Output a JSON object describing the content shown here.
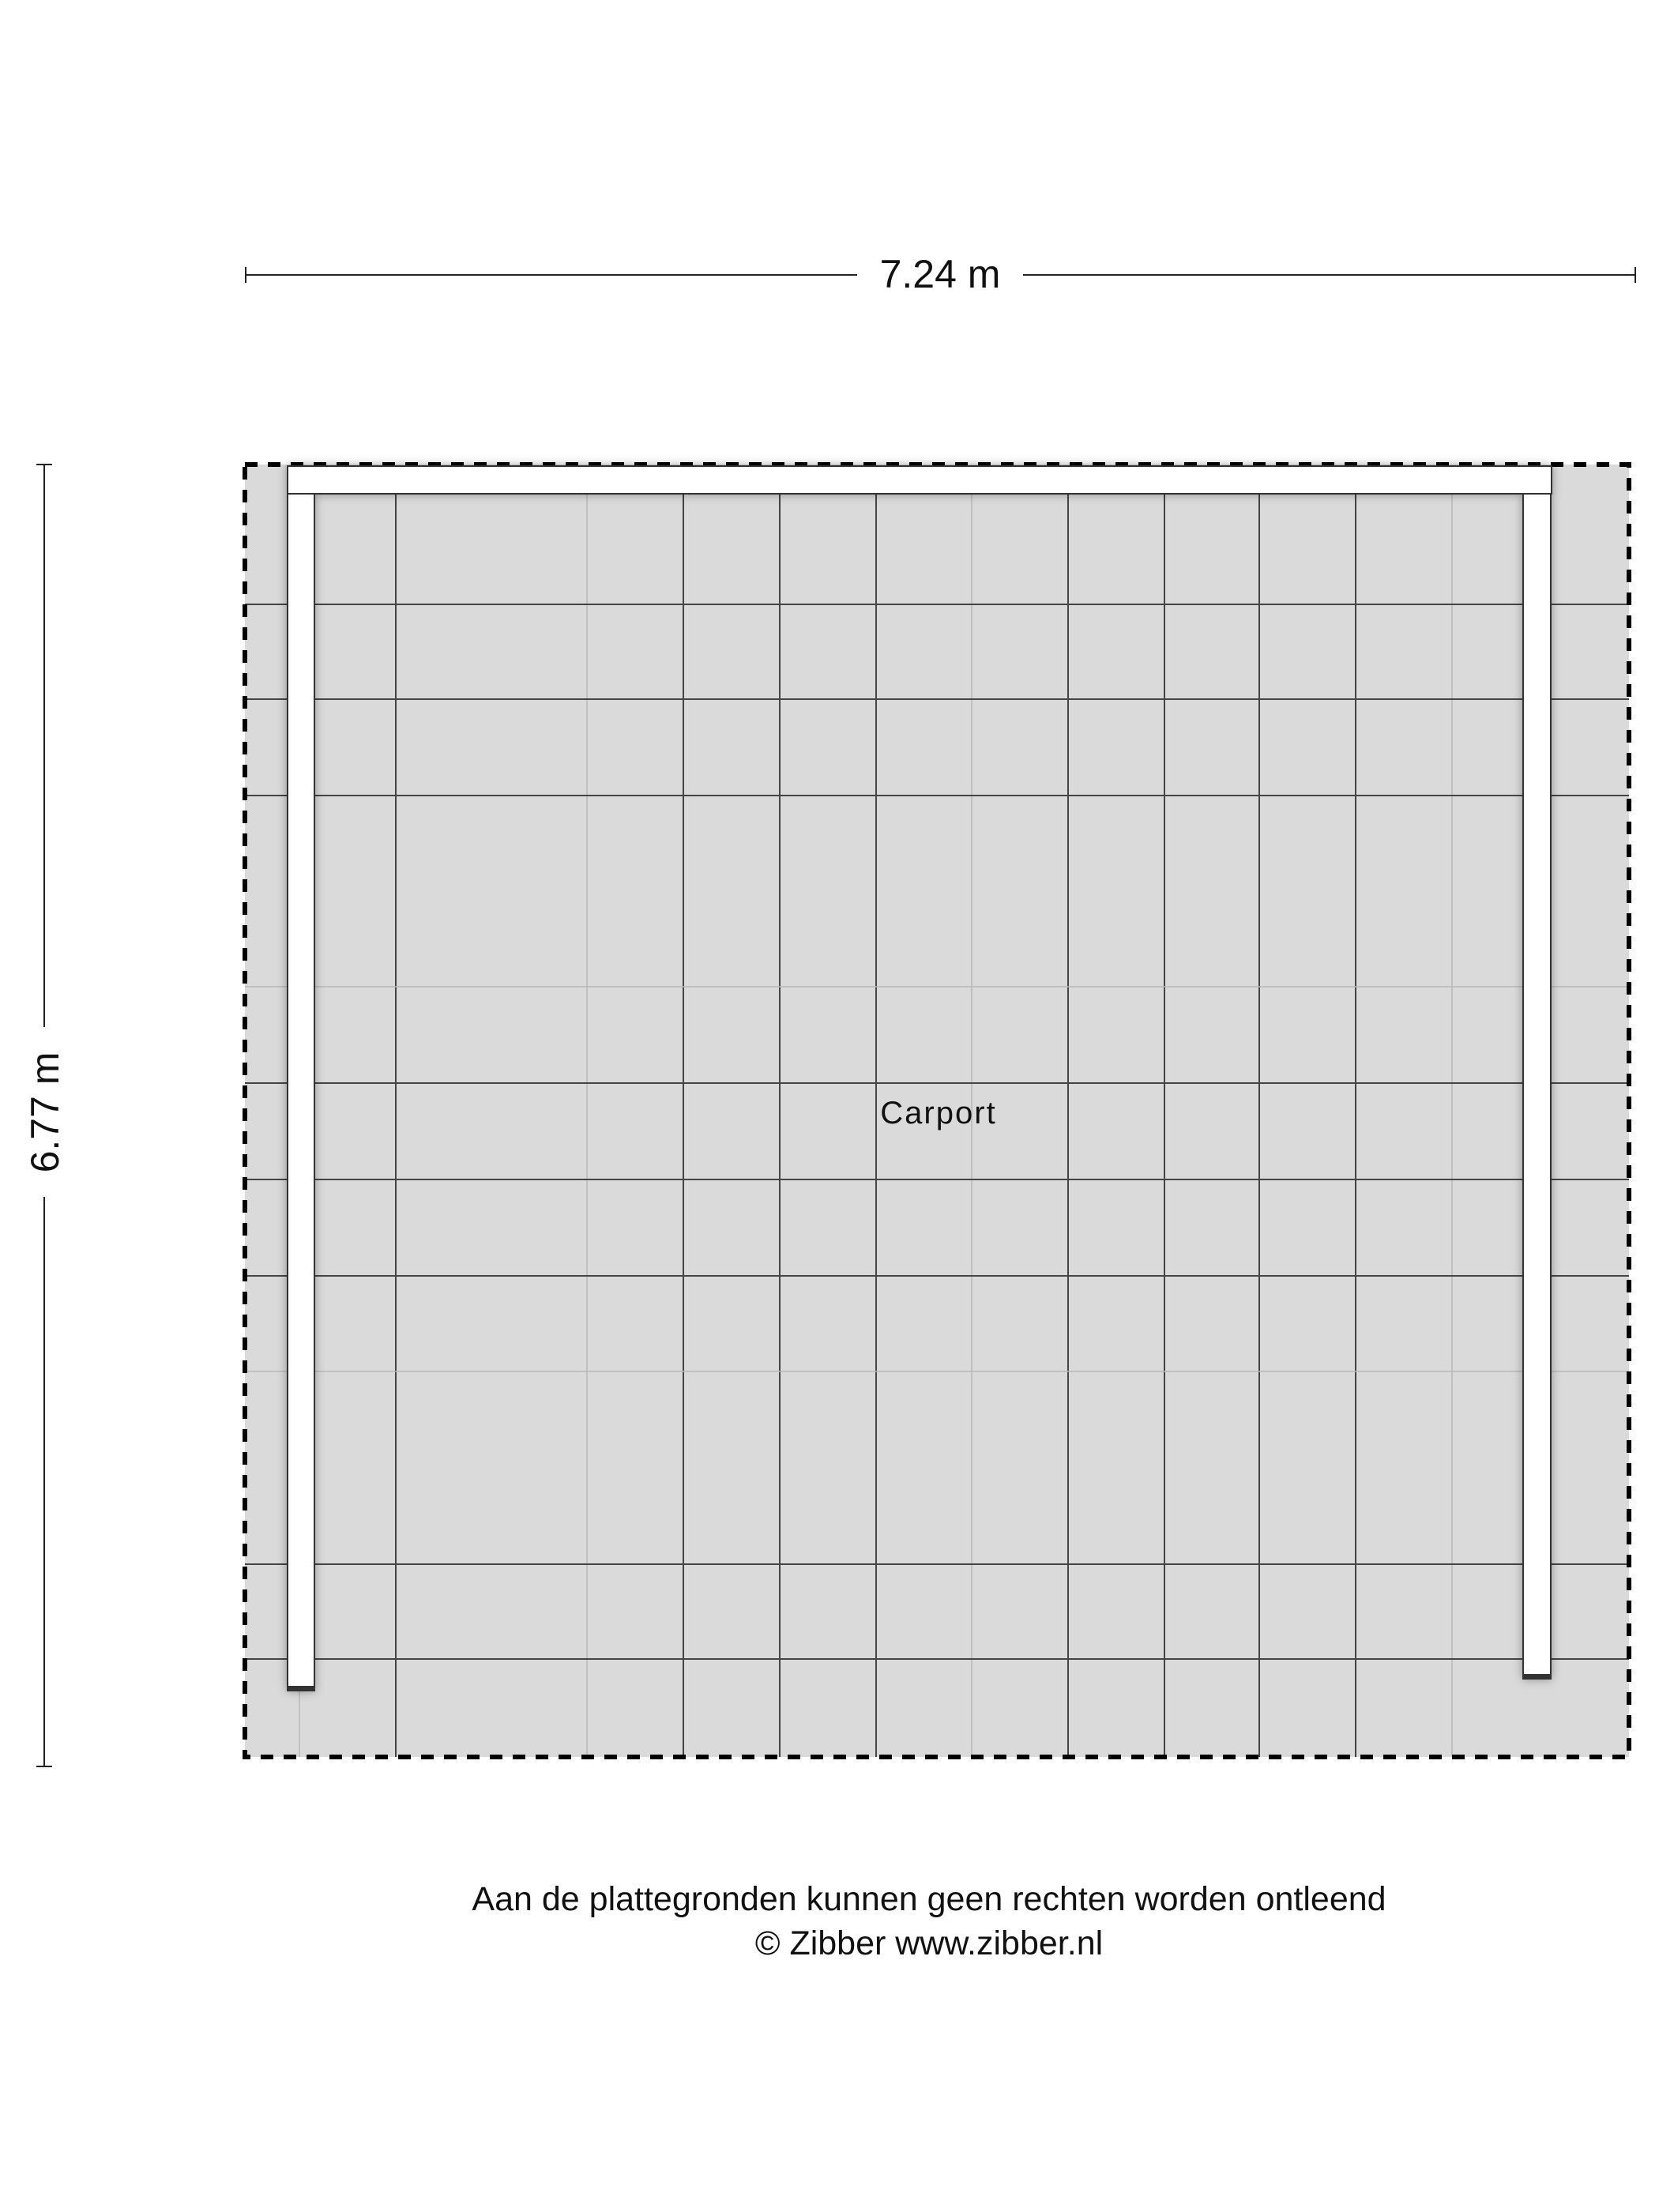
{
  "dimensions": {
    "width_label": "7.24 m",
    "height_label": "6.77 m"
  },
  "room": {
    "label": "Carport"
  },
  "footer": {
    "disclaimer": "Aan de plattegronden kunnen geen rechten worden ontleend",
    "copyright": "© Zibber www.zibber.nl"
  },
  "colors": {
    "floor": "#dadada",
    "wall": "#ffffff",
    "line": "#000000"
  }
}
